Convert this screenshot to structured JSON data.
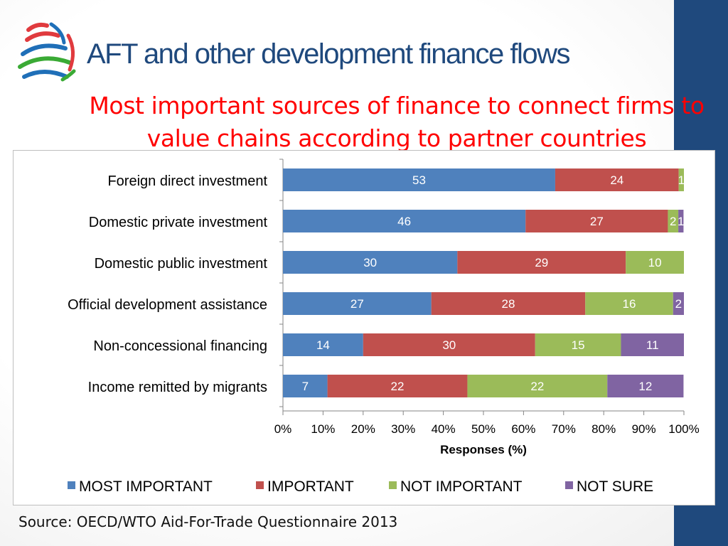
{
  "title": "AFT and other development finance flows",
  "subtitle": "Most important sources of finance to connect firms to value chains according to partner countries",
  "source": "Source: OECD/WTO Aid-For-Trade Questionnaire 2013",
  "logo": {
    "icon": "wto-logo-icon",
    "colors": [
      "#e03a3e",
      "#1f6fb8",
      "#3aaa35"
    ]
  },
  "colors": {
    "title": "#1f497d",
    "subtitle": "#ff0000",
    "band": "#1f497d"
  },
  "chart_data": {
    "type": "bar",
    "orientation": "horizontal",
    "stacked": true,
    "categories": [
      "Foreign direct investment",
      "Domestic private investment",
      "Domestic public investment",
      "Official development assistance",
      "Non-concessional financing",
      "Income remitted by migrants"
    ],
    "series": [
      {
        "name": "MOST IMPORTANT",
        "color": "#4f81bd",
        "values": [
          53,
          46,
          30,
          27,
          14,
          7
        ],
        "percent": [
          67.9,
          60.5,
          43.5,
          37.0,
          20.0,
          11.1
        ]
      },
      {
        "name": "IMPORTANT",
        "color": "#c0504d",
        "values": [
          24,
          27,
          29,
          28,
          30,
          22
        ],
        "percent": [
          30.8,
          35.5,
          42.0,
          38.4,
          42.9,
          34.9
        ]
      },
      {
        "name": "NOT IMPORTANT",
        "color": "#9bbb59",
        "values": [
          1,
          2,
          10,
          16,
          15,
          22
        ],
        "percent": [
          1.3,
          2.6,
          14.5,
          21.9,
          21.4,
          34.9
        ]
      },
      {
        "name": "NOT SURE",
        "color": "#8064a2",
        "values": [
          0,
          1,
          0,
          2,
          11,
          12
        ],
        "percent": [
          0,
          1.3,
          0,
          2.7,
          15.7,
          19.0
        ]
      }
    ],
    "xlabel": "Responses (%)",
    "xlim": [
      0,
      100
    ],
    "xticks": [
      "0%",
      "10%",
      "20%",
      "30%",
      "40%",
      "50%",
      "60%",
      "70%",
      "80%",
      "90%",
      "100%"
    ],
    "grid": false,
    "legend_position": "bottom"
  }
}
